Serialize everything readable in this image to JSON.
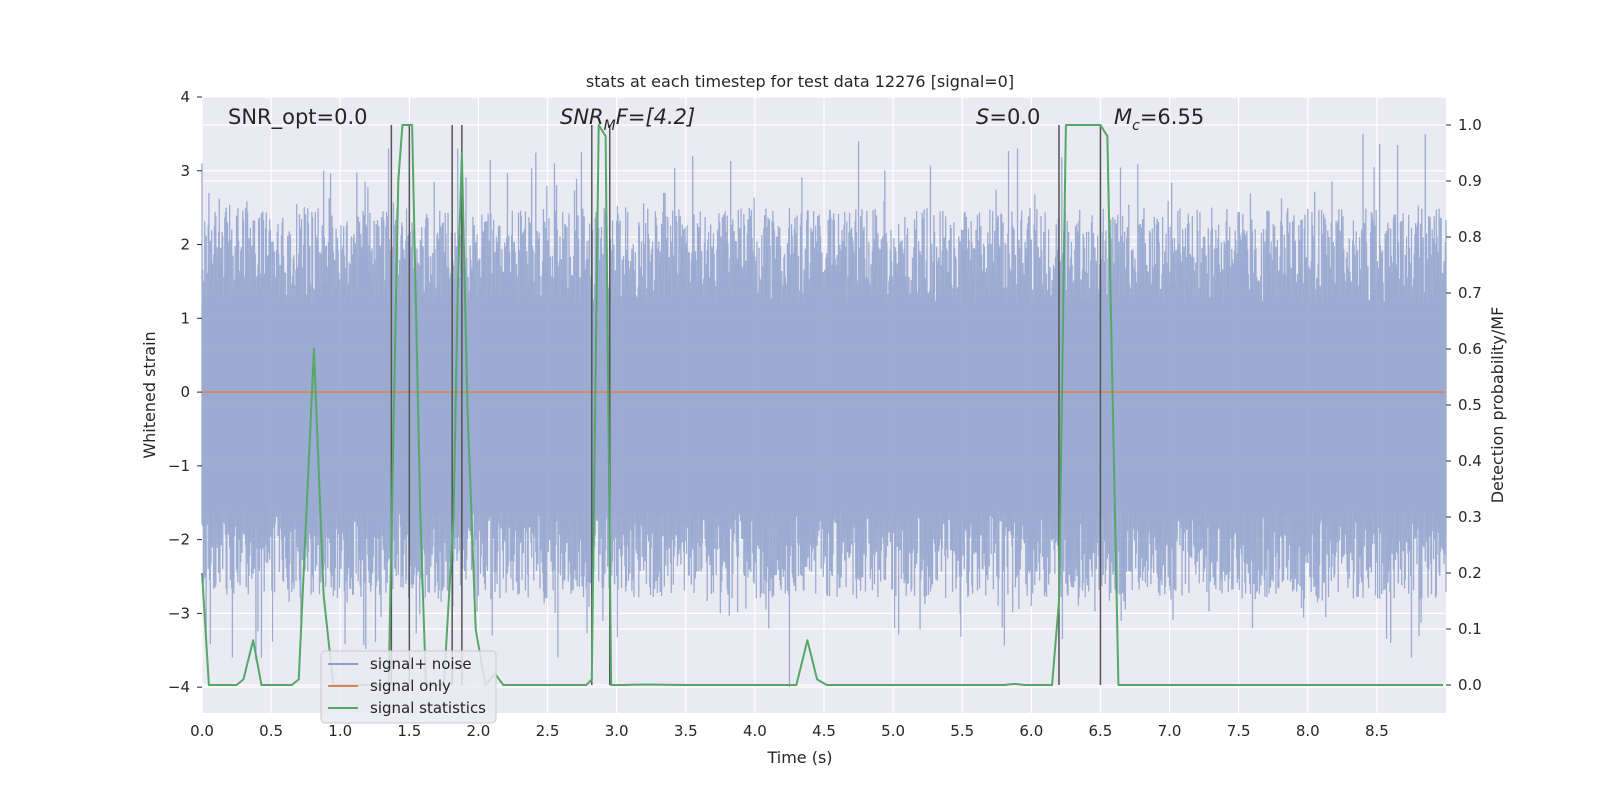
{
  "chart_data": {
    "type": "line",
    "title": "stats at each timestep for test data 12276 [signal=0]",
    "xlabel": "Time (s)",
    "ylabel": "Whitened strain",
    "ylabel_right": "Detection probability/MF",
    "xlim": [
      0.0,
      9.0
    ],
    "ylim": [
      -4.35,
      4.0
    ],
    "ylim_right": [
      -0.05,
      1.05
    ],
    "x_ticks": [
      0.0,
      0.5,
      1.0,
      1.5,
      2.0,
      2.5,
      3.0,
      3.5,
      4.0,
      4.5,
      5.0,
      5.5,
      6.0,
      6.5,
      7.0,
      7.5,
      8.0,
      8.5
    ],
    "x_tick_labels": [
      "0.0",
      "0.5",
      "1.0",
      "1.5",
      "2.0",
      "2.5",
      "3.0",
      "3.5",
      "4.0",
      "4.5",
      "5.0",
      "5.5",
      "6.0",
      "6.5",
      "7.0",
      "7.5",
      "8.0",
      "8.5"
    ],
    "y_ticks": [
      4,
      3,
      2,
      1,
      0,
      -1,
      -2,
      -3,
      -4
    ],
    "y_tick_labels": [
      "4",
      "3",
      "2",
      "1",
      "0",
      "−1",
      "−2",
      "−3",
      "−4"
    ],
    "y2_ticks": [
      1.0,
      0.9,
      0.8,
      0.7,
      0.6,
      0.5,
      0.4,
      0.3,
      0.2,
      0.1,
      0.0
    ],
    "y2_tick_labels": [
      "1.0",
      "0.9",
      "0.8",
      "0.7",
      "0.6",
      "0.5",
      "0.4",
      "0.3",
      "0.2",
      "0.1",
      "0.0"
    ],
    "annotations": {
      "snr_opt": "SNR_opt=0.0",
      "snr_mf_main": "SNR",
      "snr_mf_sub": "M",
      "snr_mf_rest": "F=[4.2]",
      "s_main": "S",
      "s_rest": "=0.0",
      "mc_main": "M",
      "mc_sub": "c",
      "mc_rest": "=6.55"
    },
    "legend": {
      "position": "lower-left",
      "entries": [
        "signal+ noise",
        "signal only",
        "signal statistics"
      ]
    },
    "colors": {
      "noise": "#8da0cb",
      "signal": "#dd8452",
      "stats": "#55a868",
      "vlines": "#555555",
      "background": "#eaeaf2",
      "grid": "#ffffff"
    },
    "series": [
      {
        "name": "signal+ noise",
        "axis": "left",
        "description": "whitened noise, approx. uniform band between -1.7 and 1.3 with spikes to about +/-3.6",
        "band": [
          -1.75,
          1.35
        ],
        "peaks_up": [
          [
            0.0,
            3.1
          ],
          [
            0.88,
            3.0
          ],
          [
            1.35,
            3.3
          ],
          [
            1.85,
            3.3
          ],
          [
            2.55,
            3.1
          ],
          [
            3.55,
            3.2
          ],
          [
            4.75,
            3.4
          ],
          [
            5.9,
            3.3
          ],
          [
            6.5,
            3.5
          ],
          [
            8.4,
            3.5
          ],
          [
            8.65,
            3.35
          ],
          [
            8.85,
            3.5
          ]
        ],
        "peaks_down": [
          [
            0.22,
            -3.6
          ],
          [
            0.43,
            -3.6
          ],
          [
            2.1,
            -3.3
          ],
          [
            2.9,
            -3.1
          ],
          [
            3.75,
            -3.0
          ],
          [
            4.25,
            -4.0
          ],
          [
            6.0,
            -2.9
          ],
          [
            6.65,
            -3.1
          ],
          [
            7.6,
            -3.2
          ],
          [
            8.6,
            -3.4
          ],
          [
            8.75,
            -3.6
          ]
        ]
      },
      {
        "name": "signal only",
        "axis": "left",
        "x": [
          0.0,
          9.0
        ],
        "y": [
          0.0,
          0.0
        ]
      },
      {
        "name": "signal statistics",
        "axis": "right",
        "x": [
          0.0,
          0.05,
          0.1,
          0.25,
          0.3,
          0.37,
          0.43,
          0.5,
          0.65,
          0.7,
          0.81,
          0.88,
          0.95,
          1.35,
          1.42,
          1.45,
          1.48,
          1.52,
          1.58,
          1.62,
          1.75,
          1.82,
          1.85,
          1.88,
          1.92,
          1.98,
          2.05,
          2.12,
          2.18,
          2.3,
          2.78,
          2.82,
          2.87,
          2.92,
          2.96,
          3.05,
          3.2,
          3.5,
          4.0,
          4.3,
          4.38,
          4.45,
          4.52,
          5.0,
          5.8,
          5.88,
          5.95,
          6.15,
          6.2,
          6.25,
          6.5,
          6.55,
          6.63,
          6.68,
          7.0,
          8.98
        ],
        "y": [
          0.2,
          0.0,
          0.0,
          0.0,
          0.01,
          0.08,
          0.0,
          0.0,
          0.0,
          0.01,
          0.6,
          0.16,
          0.0,
          0.0,
          0.9,
          1.0,
          1.0,
          1.0,
          0.3,
          0.0,
          0.0,
          0.3,
          0.7,
          0.95,
          0.5,
          0.1,
          0.0,
          0.02,
          0.0,
          0.0,
          0.0,
          0.01,
          1.0,
          0.98,
          0.0,
          0.0,
          0.001,
          0.0,
          0.0,
          0.0,
          0.08,
          0.01,
          0.0,
          0.0,
          0.0,
          0.002,
          0.0,
          0.0,
          0.15,
          1.0,
          1.0,
          0.98,
          0.0,
          0.0,
          0.0,
          0.0
        ]
      }
    ],
    "vertical_lines": [
      1.37,
      1.5,
      1.81,
      1.88,
      2.82,
      2.95,
      6.2,
      6.5
    ]
  }
}
